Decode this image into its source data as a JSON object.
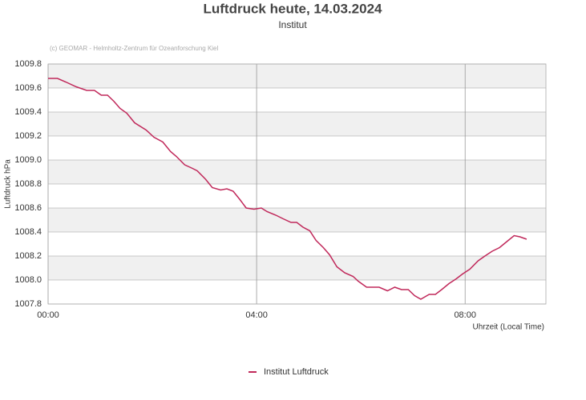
{
  "chart_data": {
    "type": "line",
    "title": "Luftdruck heute, 14.03.2024",
    "subtitle": "Institut",
    "copyright": "(c) GEOMAR - Helmholtz-Zentrum für Ozeanforschung Kiel",
    "y_label": "Luftdruck hPa",
    "x_label": "Uhrzeit (Local Time)",
    "xlim": [
      0,
      9.55
    ],
    "xticks": [
      {
        "value": 0,
        "label": "00:00"
      },
      {
        "value": 4,
        "label": "04:00"
      },
      {
        "value": 8,
        "label": "08:00"
      }
    ],
    "ylim": [
      1007.8,
      1009.8
    ],
    "yticks": [
      1007.8,
      {
        "value": 1008,
        "label": "1008.0"
      },
      1008.2,
      1008.4,
      1008.6,
      1008.8,
      {
        "value": 1009,
        "label": "1009.0"
      },
      1009.2,
      1009.4,
      1009.6,
      1009.8
    ],
    "grid": true,
    "legend_position": "bottom",
    "series": [
      {
        "name": "Institut Luftdruck",
        "color": "#c0285a",
        "x": [
          0,
          0.18,
          0.34,
          0.54,
          0.74,
          0.89,
          1.02,
          1.14,
          1.26,
          1.38,
          1.51,
          1.66,
          1.88,
          2.03,
          2.2,
          2.35,
          2.46,
          2.62,
          2.77,
          2.86,
          3.02,
          3.15,
          3.31,
          3.43,
          3.55,
          3.68,
          3.8,
          3.95,
          4.09,
          4.2,
          4.37,
          4.51,
          4.66,
          4.77,
          4.89,
          5.02,
          5.14,
          5.28,
          5.4,
          5.54,
          5.69,
          5.85,
          5.95,
          6.11,
          6.23,
          6.35,
          6.51,
          6.65,
          6.78,
          6.91,
          7.03,
          7.15,
          7.31,
          7.43,
          7.55,
          7.69,
          7.83,
          7.95,
          8.09,
          8.25,
          8.38,
          8.52,
          8.66,
          8.8,
          8.94,
          9.05,
          9.18
        ],
        "values": [
          1009.68,
          1009.68,
          1009.65,
          1009.61,
          1009.58,
          1009.58,
          1009.54,
          1009.54,
          1009.49,
          1009.43,
          1009.39,
          1009.31,
          1009.25,
          1009.19,
          1009.15,
          1009.07,
          1009.03,
          1008.96,
          1008.93,
          1008.91,
          1008.84,
          1008.77,
          1008.75,
          1008.76,
          1008.74,
          1008.67,
          1008.6,
          1008.59,
          1008.6,
          1008.57,
          1008.54,
          1008.51,
          1008.48,
          1008.48,
          1008.44,
          1008.41,
          1008.33,
          1008.27,
          1008.21,
          1008.11,
          1008.06,
          1008.03,
          1007.99,
          1007.94,
          1007.94,
          1007.94,
          1007.91,
          1007.94,
          1007.92,
          1007.92,
          1007.87,
          1007.84,
          1007.88,
          1007.88,
          1007.92,
          1007.97,
          1008.01,
          1008.05,
          1008.09,
          1008.16,
          1008.2,
          1008.24,
          1008.27,
          1008.32,
          1008.37,
          1008.36,
          1008.34
        ]
      }
    ]
  }
}
